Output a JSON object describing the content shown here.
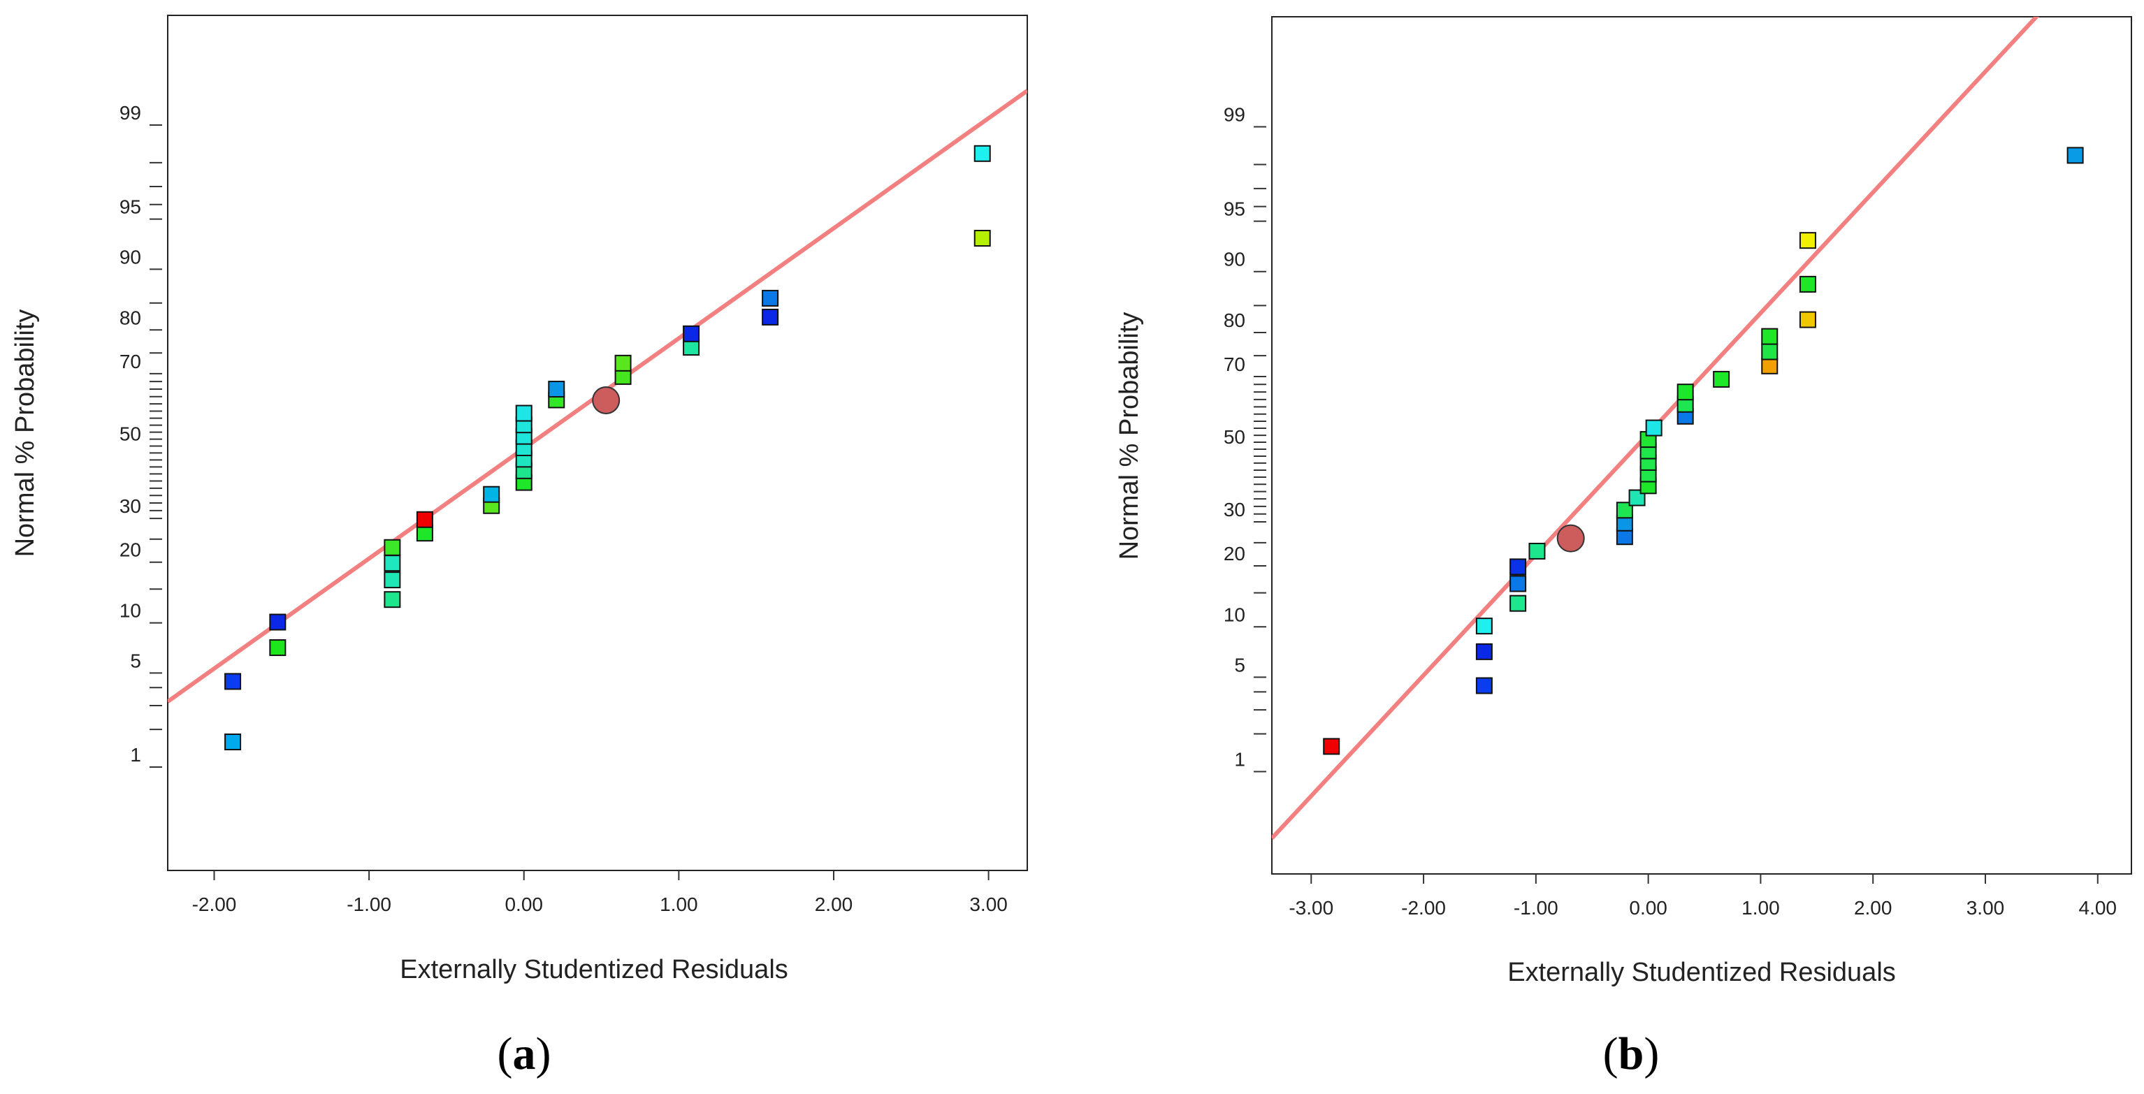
{
  "chart_data": [
    {
      "type": "scatter",
      "panel_label": "a",
      "xlabel": "Externally Studentized Residuals",
      "ylabel": "Normal % Probability",
      "xlim": [
        -2.3,
        3.25
      ],
      "x_ticks": [
        -2,
        -1,
        0,
        1,
        2,
        3
      ],
      "x_tick_labels": [
        "-2.00",
        "-1.00",
        "0.00",
        "1.00",
        "2.00",
        "3.00"
      ],
      "y_tick_labels": [
        {
          "p": 1,
          "label": "1"
        },
        {
          "p": 5,
          "label": "5"
        },
        {
          "p": 10,
          "label": "10"
        },
        {
          "p": 20,
          "label": "20"
        },
        {
          "p": 30,
          "label": "30"
        },
        {
          "p": 50,
          "label": "50"
        },
        {
          "p": 70,
          "label": "70"
        },
        {
          "p": 80,
          "label": "80"
        },
        {
          "p": 90,
          "label": "90"
        },
        {
          "p": 95,
          "label": "95"
        },
        {
          "p": 99,
          "label": "99"
        }
      ],
      "fit_line": {
        "color": "#f28080",
        "x": [
          -2.3,
          3.25
        ],
        "p": [
          3.2,
          99.5
        ]
      },
      "highlight": {
        "x": 0.53,
        "p": 63,
        "color": "#cd5c5c"
      },
      "points": [
        {
          "x": -1.88,
          "p": 1.6,
          "color": "#00a8f0"
        },
        {
          "x": -1.88,
          "p": 4.4,
          "color": "#0a3cf0"
        },
        {
          "x": -1.59,
          "p": 7.2,
          "color": "#1ee61e"
        },
        {
          "x": -1.59,
          "p": 10.1,
          "color": "#0a28e6"
        },
        {
          "x": -0.85,
          "p": 13.3,
          "color": "#1ee68c"
        },
        {
          "x": -0.85,
          "p": 16.6,
          "color": "#1ee6b4"
        },
        {
          "x": -0.85,
          "p": 19.8,
          "color": "#1ee6be"
        },
        {
          "x": -0.85,
          "p": 23.1,
          "color": "#3ce628"
        },
        {
          "x": -0.64,
          "p": 26.4,
          "color": "#1ee628"
        },
        {
          "x": -0.64,
          "p": 29.7,
          "color": "#f00000"
        },
        {
          "x": -0.21,
          "p": 33.3,
          "color": "#5ae61e"
        },
        {
          "x": -0.21,
          "p": 36.3,
          "color": "#00b4e6"
        },
        {
          "x": 0.0,
          "p": 39.6,
          "color": "#1ee628"
        },
        {
          "x": 0.0,
          "p": 42.9,
          "color": "#1ee68c"
        },
        {
          "x": 0.0,
          "p": 46.2,
          "color": "#1ee6be"
        },
        {
          "x": 0.0,
          "p": 49.5,
          "color": "#1ee6d2"
        },
        {
          "x": 0.0,
          "p": 52.8,
          "color": "#1ee6dc"
        },
        {
          "x": 0.0,
          "p": 56.1,
          "color": "#1ee6dc"
        },
        {
          "x": 0.0,
          "p": 59.4,
          "color": "#1ee6e6"
        },
        {
          "x": 0.21,
          "p": 63.1,
          "color": "#32e628"
        },
        {
          "x": 0.21,
          "p": 66.0,
          "color": "#0a96e6"
        },
        {
          "x": 0.64,
          "p": 69.3,
          "color": "#46e61e"
        },
        {
          "x": 0.64,
          "p": 72.6,
          "color": "#5ae61e"
        },
        {
          "x": 1.08,
          "p": 76.3,
          "color": "#1ee6a0"
        },
        {
          "x": 1.08,
          "p": 79.2,
          "color": "#0a28e6"
        },
        {
          "x": 1.59,
          "p": 82.5,
          "color": "#0a28e6"
        },
        {
          "x": 1.59,
          "p": 85.8,
          "color": "#0a78e6"
        },
        {
          "x": 2.96,
          "p": 93.4,
          "color": "#b4f000"
        },
        {
          "x": 2.96,
          "p": 98.3,
          "color": "#1ef0f0"
        }
      ]
    },
    {
      "type": "scatter",
      "panel_label": "b",
      "xlabel": "Externally Studentized Residuals",
      "ylabel": "Normal % Probability",
      "xlim": [
        -3.35,
        4.3
      ],
      "x_ticks": [
        -3,
        -2,
        -1,
        0,
        1,
        2,
        3,
        4
      ],
      "x_tick_labels": [
        "-3.00",
        "-2.00",
        "-1.00",
        "0.00",
        "1.00",
        "2.00",
        "3.00",
        "4.00"
      ],
      "y_tick_labels": [
        {
          "p": 1,
          "label": "1"
        },
        {
          "p": 5,
          "label": "5"
        },
        {
          "p": 10,
          "label": "10"
        },
        {
          "p": 20,
          "label": "20"
        },
        {
          "p": 30,
          "label": "30"
        },
        {
          "p": 50,
          "label": "50"
        },
        {
          "p": 70,
          "label": "70"
        },
        {
          "p": 80,
          "label": "80"
        },
        {
          "p": 90,
          "label": "90"
        },
        {
          "p": 95,
          "label": "95"
        },
        {
          "p": 99,
          "label": "99"
        }
      ],
      "fit_line": {
        "color": "#f28080",
        "x": [
          -3.35,
          3.65
        ],
        "p": [
          0.25,
          99.95
        ]
      },
      "highlight": {
        "x": -0.69,
        "p": 26,
        "color": "#cd5c5c"
      },
      "points": [
        {
          "x": -2.82,
          "p": 1.6,
          "color": "#f00000"
        },
        {
          "x": -1.46,
          "p": 4.4,
          "color": "#0a3cf0"
        },
        {
          "x": -1.46,
          "p": 7.2,
          "color": "#0a28e6"
        },
        {
          "x": -1.46,
          "p": 10.1,
          "color": "#1ef0f0"
        },
        {
          "x": -1.16,
          "p": 13.3,
          "color": "#1ee68c"
        },
        {
          "x": -1.16,
          "p": 16.6,
          "color": "#0a78e6"
        },
        {
          "x": -1.16,
          "p": 19.8,
          "color": "#0a32e6"
        },
        {
          "x": -0.99,
          "p": 23.1,
          "color": "#1ee68c"
        },
        {
          "x": -0.21,
          "p": 26.4,
          "color": "#0a78e6"
        },
        {
          "x": -0.21,
          "p": 29.7,
          "color": "#0a96e6"
        },
        {
          "x": -0.21,
          "p": 33.0,
          "color": "#1ee650"
        },
        {
          "x": -0.1,
          "p": 36.3,
          "color": "#1ee6b4"
        },
        {
          "x": 0.0,
          "p": 39.6,
          "color": "#1ee628"
        },
        {
          "x": 0.0,
          "p": 42.9,
          "color": "#1ee64b"
        },
        {
          "x": 0.0,
          "p": 46.2,
          "color": "#1ee64b"
        },
        {
          "x": 0.0,
          "p": 49.5,
          "color": "#1ee64b"
        },
        {
          "x": 0.0,
          "p": 52.8,
          "color": "#1ee632"
        },
        {
          "x": 0.05,
          "p": 56.1,
          "color": "#1ee6e6"
        },
        {
          "x": 0.33,
          "p": 59.4,
          "color": "#0a78e6"
        },
        {
          "x": 0.33,
          "p": 62.7,
          "color": "#1ee650"
        },
        {
          "x": 0.33,
          "p": 66.0,
          "color": "#1ee628"
        },
        {
          "x": 0.65,
          "p": 69.3,
          "color": "#1ee628"
        },
        {
          "x": 1.08,
          "p": 72.6,
          "color": "#f0a000"
        },
        {
          "x": 1.08,
          "p": 75.9,
          "color": "#1ee646"
        },
        {
          "x": 1.08,
          "p": 79.2,
          "color": "#1ee628"
        },
        {
          "x": 1.42,
          "p": 82.5,
          "color": "#f0c800"
        },
        {
          "x": 1.42,
          "p": 88.3,
          "color": "#1ee628"
        },
        {
          "x": 1.42,
          "p": 93.4,
          "color": "#f0f000"
        },
        {
          "x": 3.8,
          "p": 98.3,
          "color": "#0a9be6"
        }
      ]
    }
  ]
}
